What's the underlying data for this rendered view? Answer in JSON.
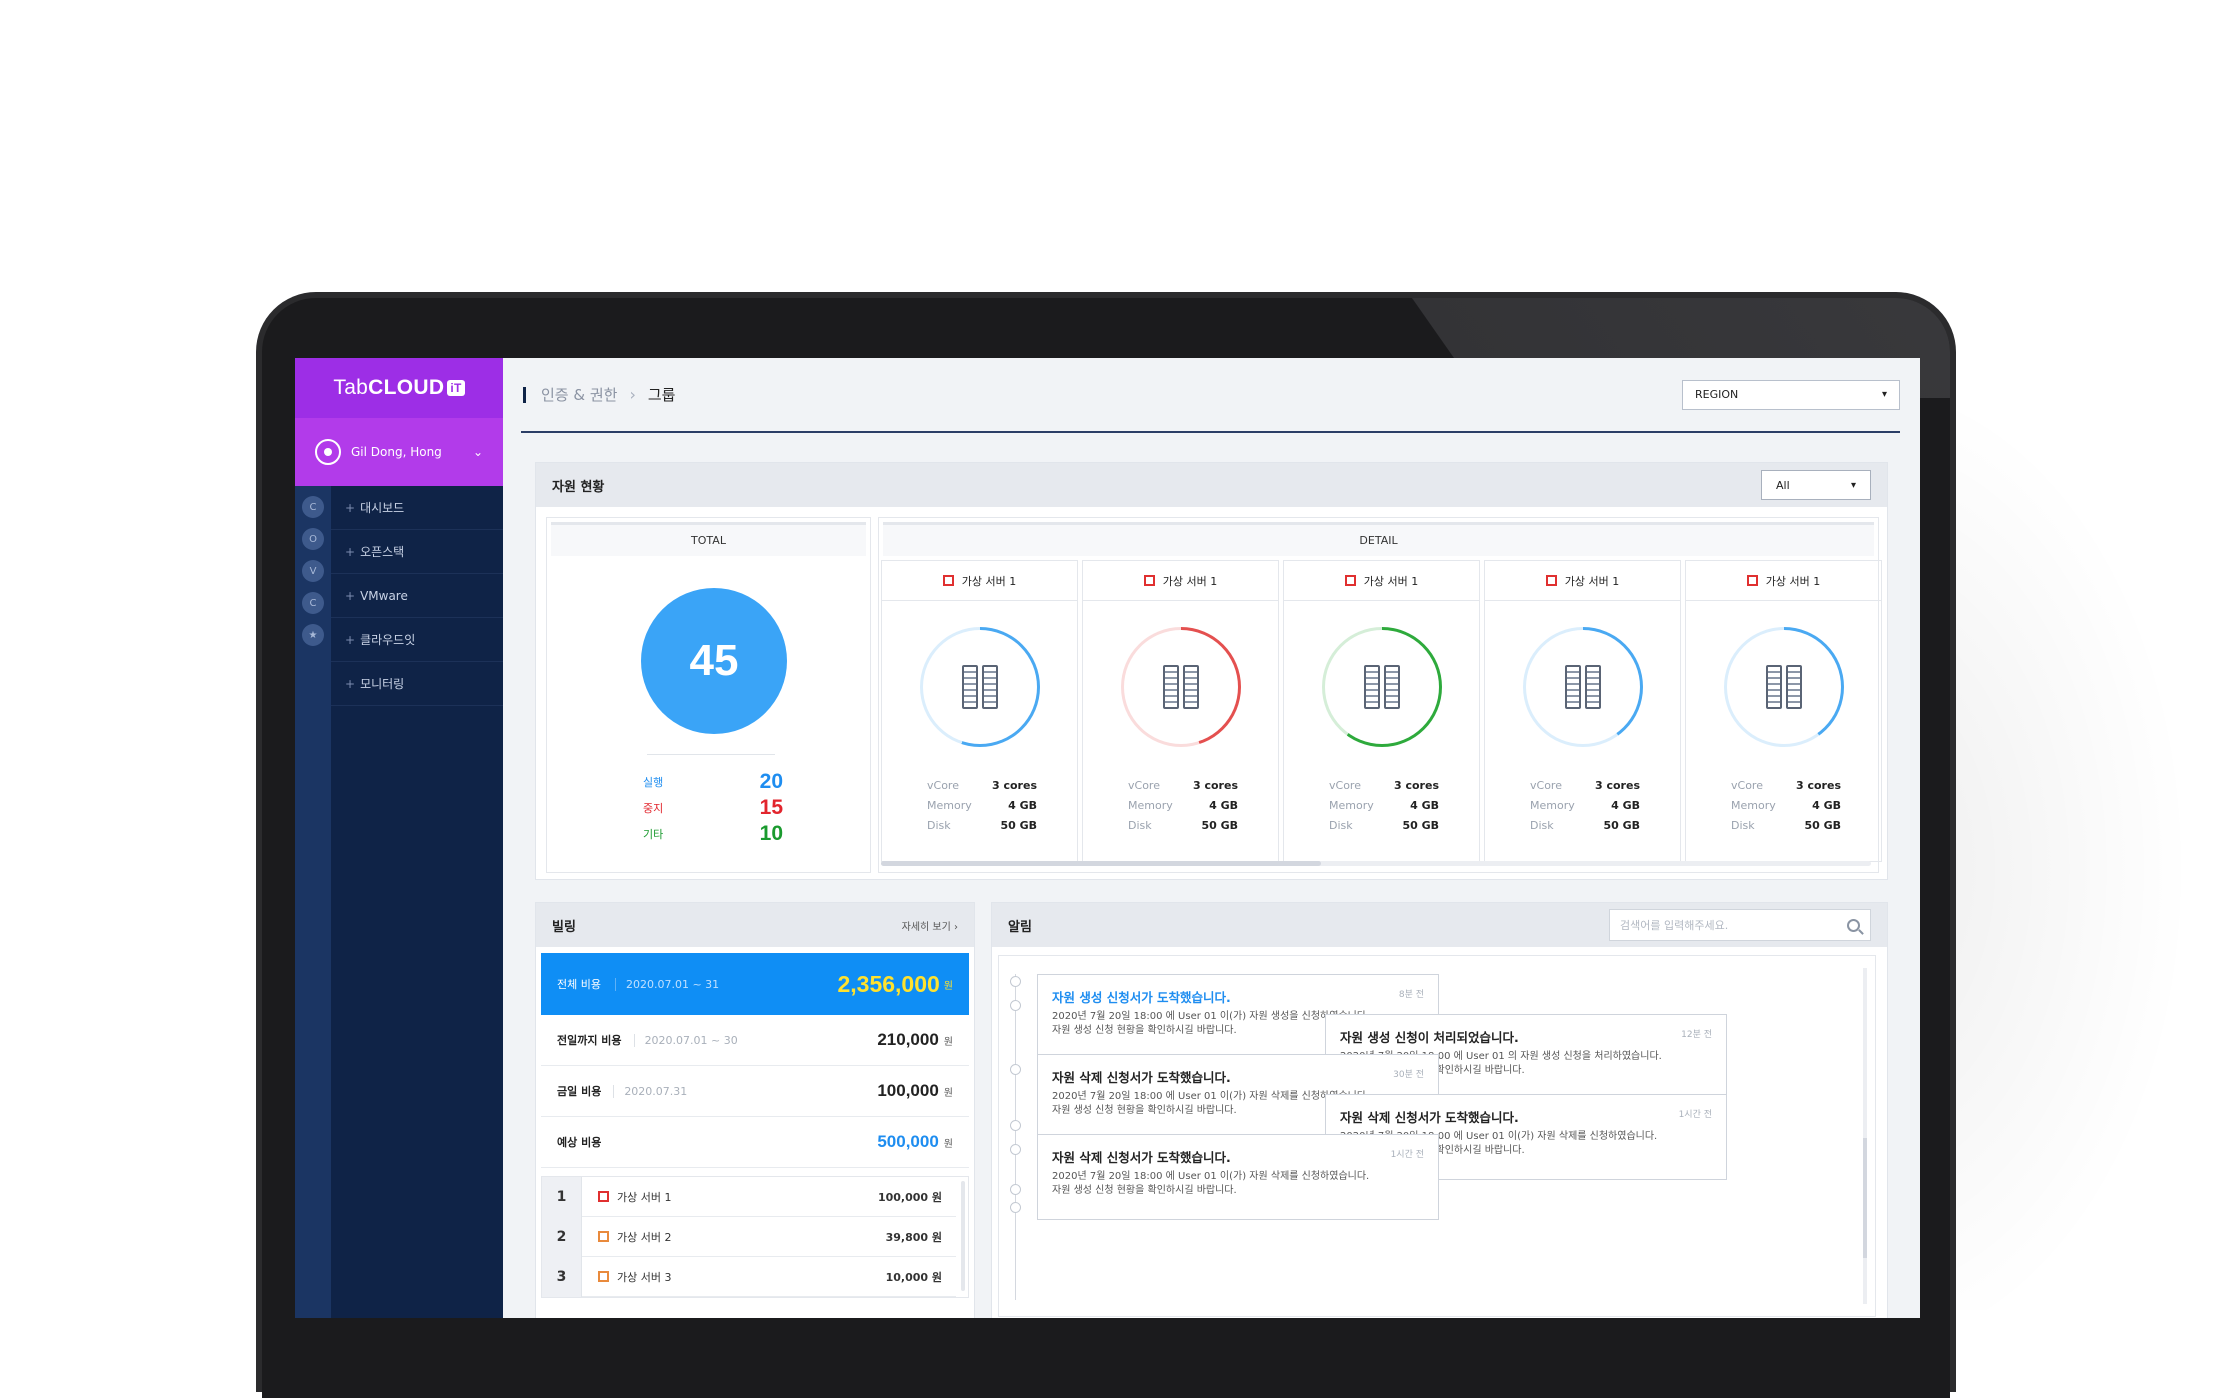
{
  "app": {
    "logo_prefix": "Tab",
    "logo_bold": "CLOUD",
    "logo_badge": "iT",
    "user_name": "Gil Dong, Hong"
  },
  "sidebar": {
    "rail": [
      "C",
      "O",
      "V",
      "C",
      "★"
    ],
    "items": [
      {
        "label": "대시보드"
      },
      {
        "label": "오픈스택"
      },
      {
        "label": "VMware"
      },
      {
        "label": "클라우드잇"
      },
      {
        "label": "모니터링"
      }
    ]
  },
  "header": {
    "breadcrumb_parent": "인증 & 권한",
    "breadcrumb_current": "그룹",
    "region_select": "REGION"
  },
  "resources": {
    "title": "자원 현황",
    "filter": "All",
    "total_label": "TOTAL",
    "detail_label": "DETAIL",
    "total": "45",
    "stats": [
      {
        "label": "실행",
        "value": "20",
        "color": "#1e8df0"
      },
      {
        "label": "중지",
        "value": "15",
        "color": "#e2252d"
      },
      {
        "label": "기타",
        "value": "10",
        "color": "#1a9a2e"
      }
    ],
    "spec_keys": {
      "vcore": "vCore",
      "memory": "Memory",
      "disk": "Disk"
    },
    "servers": [
      {
        "name": "가상 서버 1",
        "vcore": "3 cores",
        "memory": "4 GB",
        "disk": "50 GB",
        "ring_color": "#4aa9f2",
        "usage": 0.55
      },
      {
        "name": "가상 서버 1",
        "vcore": "3 cores",
        "memory": "4 GB",
        "disk": "50 GB",
        "ring_color": "#e4504f",
        "usage": 0.45
      },
      {
        "name": "가상 서버 1",
        "vcore": "3 cores",
        "memory": "4 GB",
        "disk": "50 GB",
        "ring_color": "#2eaa3c",
        "usage": 0.6
      },
      {
        "name": "가상 서버 1",
        "vcore": "3 cores",
        "memory": "4 GB",
        "disk": "50 GB",
        "ring_color": "#4aa9f2",
        "usage": 0.4
      },
      {
        "name": "가상 서버 1",
        "vcore": "3 cores",
        "memory": "4 GB",
        "disk": "50 GB",
        "ring_color": "#4aa9f2",
        "usage": 0.4
      }
    ]
  },
  "billing": {
    "title": "빌링",
    "more": "자세히 보기  ›",
    "total": {
      "label": "전체 비용",
      "period": "2020.07.01 ~ 31",
      "amount": "2,356,000",
      "unit": "원"
    },
    "rows": [
      {
        "label": "전일까지 비용",
        "period": "2020.07.01 ~ 30",
        "amount": "210,000",
        "unit": "원",
        "color": "#222"
      },
      {
        "label": "금일 비용",
        "period": "2020.07.31",
        "amount": "100,000",
        "unit": "원",
        "color": "#222"
      },
      {
        "label": "예상 비용",
        "period": "",
        "amount": "500,000",
        "unit": "원",
        "color": "#1e8df0"
      }
    ],
    "ranking": [
      {
        "rank": "1",
        "name": "가상 서버 1",
        "amount": "100,000 원"
      },
      {
        "rank": "2",
        "name": "가상 서버 2",
        "amount": "39,800 원"
      },
      {
        "rank": "3",
        "name": "가상 서버 3",
        "amount": "10,000 원"
      }
    ]
  },
  "alerts": {
    "title": "알림",
    "search_placeholder": "검색어를 입력해주세요.",
    "items": [
      {
        "title": "자원 생성 신청서가 도착했습니다.",
        "ago": "8분 전",
        "line1": "2020년 7월 20일 18:00 에 User 01 이(가) 자원 생성을 신청하였습니다.",
        "line2": "자원 생성 신청 현황을 확인하시길 바랍니다.",
        "highlight": true
      },
      {
        "title": "자원 생성 신청이 처리되었습니다.",
        "ago": "12분 전",
        "line1": "2020년 7월 20일 18:00 에 User 01 의 자원 생성 신청을 처리하였습니다.",
        "line2": "자원 생성 신청 현황을 확인하시길 바랍니다.",
        "highlight": false
      },
      {
        "title": "자원 삭제 신청서가 도착했습니다.",
        "ago": "30분 전",
        "line1": "2020년 7월 20일 18:00 에 User 01 이(가) 자원 삭제를 신청하였습니다.",
        "line2": "자원 생성 신청 현황을 확인하시길 바랍니다.",
        "highlight": false
      },
      {
        "title": "자원 삭제 신청서가 도착했습니다.",
        "ago": "1시간 전",
        "line1": "2020년 7월 20일 18:00 에 User 01 이(가) 자원 삭제를 신청하였습니다.",
        "line2": "자원 생성 신청 현황을 확인하시길 바랍니다.",
        "highlight": false
      },
      {
        "title": "자원 삭제 신청서가 도착했습니다.",
        "ago": "1시간 전",
        "line1": "2020년 7월 20일 18:00 에 User 01 이(가) 자원 삭제를 신청하였습니다.",
        "line2": "자원 생성 신청 현황을 확인하시길 바랍니다.",
        "highlight": false
      }
    ]
  }
}
